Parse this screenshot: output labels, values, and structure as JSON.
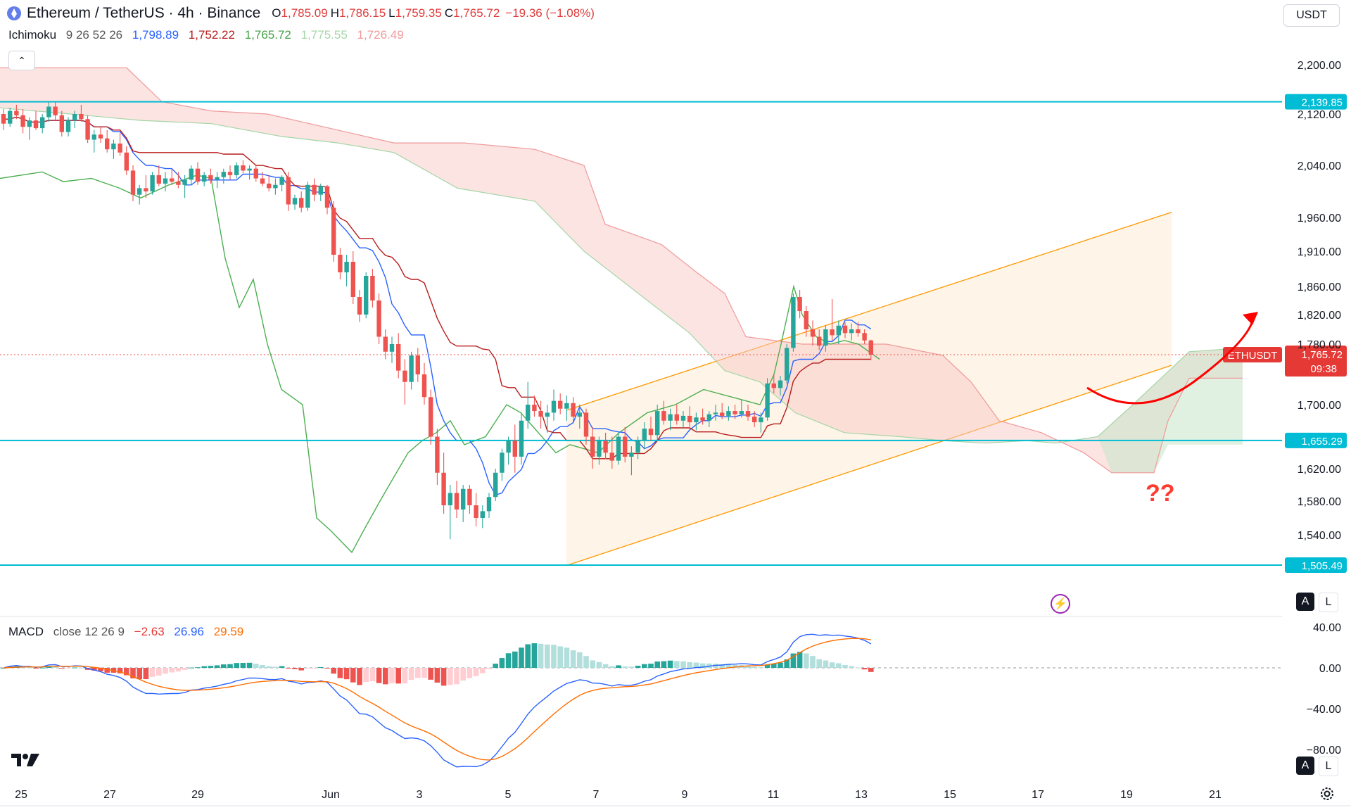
{
  "header": {
    "symbol": "Ethereum / TetherUS · 4h · Binance",
    "open_label": "O",
    "open": "1,785.09",
    "high_label": "H",
    "high": "1,786.15",
    "low_label": "L",
    "low": "1,759.35",
    "close_label": "C",
    "close": "1,765.72",
    "change": "−19.36 (−1.08%)"
  },
  "currency_select": "USDT",
  "ichimoku": {
    "label": "Ichimoku",
    "params": "9 26 52 26",
    "values": [
      "1,798.89",
      "1,752.22",
      "1,765.72",
      "1,775.55",
      "1,726.49"
    ],
    "colors": [
      "#2962ff",
      "#b71c1c",
      "#43a047",
      "#a5d6a7",
      "#ef9a9a"
    ]
  },
  "macd": {
    "label": "MACD",
    "params": "close 12 26 9",
    "values": [
      "−2.63",
      "26.96",
      "29.59"
    ],
    "colors": [
      "#e53935",
      "#2962ff",
      "#ff6d00"
    ]
  },
  "colors": {
    "up": "#26a69a",
    "down": "#ef5350",
    "level_line": "#00bcd4",
    "channel": "#ff9800",
    "arrow": "#ff0000",
    "question": "#ff3b30"
  },
  "icons": [
    "ethereum-logo-icon",
    "chevron-up-icon",
    "lightning-icon",
    "tradingview-logo-icon",
    "gear-icon"
  ],
  "chart_data": {
    "type": "candlestick",
    "symbol": "ETHUSDT",
    "timeframe": "4h",
    "y_axis_ticks": [
      "2,200.00",
      "2,120.00",
      "2,040.00",
      "1,960.00",
      "1,910.00",
      "1,860.00",
      "1,820.00",
      "1,780.00",
      "1,700.00",
      "1,620.00",
      "1,580.00",
      "1,540.00"
    ],
    "x_axis_ticks": [
      "25",
      "27",
      "29",
      "Jun",
      "3",
      "5",
      "7",
      "9",
      "11",
      "13",
      "15",
      "17",
      "19",
      "21"
    ],
    "price_tag": {
      "label": "ETHUSDT",
      "value": "1,765.72",
      "countdown": "09:38"
    },
    "horizontal_levels": [
      "2,139.85",
      "1,655.29",
      "1,505.49"
    ],
    "annotation": "??",
    "candles_approx": [
      [
        2120,
        2128,
        2095,
        2105
      ],
      [
        2105,
        2130,
        2100,
        2125
      ],
      [
        2125,
        2135,
        2112,
        2118
      ],
      [
        2118,
        2128,
        2090,
        2100
      ],
      [
        2100,
        2115,
        2080,
        2110
      ],
      [
        2110,
        2125,
        2095,
        2098
      ],
      [
        2098,
        2120,
        2090,
        2115
      ],
      [
        2115,
        2140,
        2108,
        2132
      ],
      [
        2132,
        2140,
        2110,
        2118
      ],
      [
        2118,
        2125,
        2085,
        2092
      ],
      [
        2092,
        2115,
        2085,
        2110
      ],
      [
        2110,
        2125,
        2098,
        2120
      ],
      [
        2120,
        2135,
        2108,
        2112
      ],
      [
        2112,
        2118,
        2075,
        2080
      ],
      [
        2080,
        2095,
        2060,
        2088
      ],
      [
        2088,
        2100,
        2075,
        2082
      ],
      [
        2082,
        2095,
        2060,
        2065
      ],
      [
        2065,
        2080,
        2050,
        2074
      ],
      [
        2074,
        2090,
        2055,
        2060
      ],
      [
        2060,
        2070,
        2025,
        2032
      ],
      [
        2032,
        2040,
        1985,
        1995
      ],
      [
        1995,
        2010,
        1980,
        2005
      ],
      [
        2005,
        2025,
        1990,
        2000
      ],
      [
        2000,
        2030,
        1995,
        2025
      ],
      [
        2025,
        2040,
        2008,
        2012
      ],
      [
        2012,
        2030,
        2000,
        2020
      ],
      [
        2020,
        2035,
        2010,
        2015
      ],
      [
        2015,
        2030,
        2005,
        2010
      ],
      [
        2010,
        2025,
        1990,
        2018
      ],
      [
        2018,
        2040,
        2010,
        2035
      ],
      [
        2035,
        2045,
        2010,
        2015
      ],
      [
        2015,
        2030,
        2008,
        2025
      ],
      [
        2025,
        2035,
        2012,
        2018
      ],
      [
        2018,
        2030,
        2005,
        2022
      ],
      [
        2022,
        2035,
        2012,
        2030
      ],
      [
        2030,
        2040,
        2018,
        2025
      ],
      [
        2025,
        2045,
        2020,
        2040
      ],
      [
        2040,
        2048,
        2028,
        2032
      ],
      [
        2032,
        2040,
        2018,
        2035
      ],
      [
        2035,
        2040,
        2015,
        2020
      ],
      [
        2020,
        2030,
        2008,
        2012
      ],
      [
        2012,
        2025,
        2000,
        2005
      ],
      [
        2005,
        2020,
        1995,
        2010
      ],
      [
        2010,
        2025,
        2000,
        2022
      ],
      [
        2022,
        2030,
        1970,
        1980
      ],
      [
        1980,
        1995,
        1972,
        1990
      ],
      [
        1990,
        2000,
        1968,
        1975
      ],
      [
        1975,
        2015,
        1970,
        2010
      ],
      [
        2010,
        2020,
        1985,
        1995
      ],
      [
        1995,
        2012,
        1985,
        2008
      ],
      [
        2008,
        2010,
        1965,
        1975
      ],
      [
        1975,
        1985,
        1895,
        1905
      ],
      [
        1905,
        1915,
        1870,
        1880
      ],
      [
        1880,
        1905,
        1860,
        1895
      ],
      [
        1895,
        1910,
        1835,
        1845
      ],
      [
        1845,
        1855,
        1810,
        1820
      ],
      [
        1820,
        1880,
        1815,
        1875
      ],
      [
        1875,
        1885,
        1830,
        1840
      ],
      [
        1840,
        1850,
        1780,
        1790
      ],
      [
        1790,
        1800,
        1760,
        1770
      ],
      [
        1770,
        1790,
        1755,
        1780
      ],
      [
        1780,
        1795,
        1735,
        1745
      ],
      [
        1745,
        1760,
        1700,
        1730
      ],
      [
        1730,
        1770,
        1720,
        1765
      ],
      [
        1765,
        1775,
        1730,
        1740
      ],
      [
        1740,
        1755,
        1700,
        1710
      ],
      [
        1710,
        1720,
        1650,
        1660
      ],
      [
        1660,
        1670,
        1600,
        1615
      ],
      [
        1615,
        1640,
        1565,
        1575
      ],
      [
        1575,
        1600,
        1535,
        1590
      ],
      [
        1590,
        1605,
        1560,
        1570
      ],
      [
        1570,
        1600,
        1555,
        1595
      ],
      [
        1595,
        1600,
        1565,
        1575
      ],
      [
        1575,
        1590,
        1550,
        1560
      ],
      [
        1560,
        1575,
        1548,
        1568
      ],
      [
        1568,
        1590,
        1560,
        1585
      ],
      [
        1585,
        1620,
        1580,
        1615
      ],
      [
        1615,
        1645,
        1605,
        1640
      ],
      [
        1640,
        1660,
        1625,
        1655
      ],
      [
        1655,
        1675,
        1615,
        1635
      ],
      [
        1635,
        1690,
        1625,
        1680
      ],
      [
        1680,
        1730,
        1670,
        1700
      ],
      [
        1700,
        1712,
        1685,
        1692
      ],
      [
        1692,
        1705,
        1670,
        1685
      ],
      [
        1685,
        1700,
        1665,
        1690
      ],
      [
        1690,
        1720,
        1680,
        1705
      ],
      [
        1705,
        1715,
        1688,
        1695
      ],
      [
        1695,
        1712,
        1680,
        1702
      ],
      [
        1702,
        1710,
        1678,
        1685
      ],
      [
        1685,
        1700,
        1670,
        1690
      ],
      [
        1690,
        1695,
        1650,
        1660
      ],
      [
        1660,
        1672,
        1620,
        1635
      ],
      [
        1635,
        1660,
        1625,
        1655
      ],
      [
        1655,
        1665,
        1632,
        1640
      ],
      [
        1640,
        1660,
        1620,
        1630
      ],
      [
        1630,
        1665,
        1625,
        1660
      ],
      [
        1660,
        1672,
        1628,
        1635
      ],
      [
        1635,
        1648,
        1612,
        1640
      ],
      [
        1640,
        1660,
        1632,
        1655
      ],
      [
        1655,
        1678,
        1645,
        1670
      ],
      [
        1670,
        1685,
        1655,
        1662
      ],
      [
        1662,
        1700,
        1655,
        1692
      ],
      [
        1692,
        1705,
        1675,
        1680
      ],
      [
        1680,
        1695,
        1668,
        1688
      ],
      [
        1688,
        1700,
        1675,
        1680
      ],
      [
        1680,
        1692,
        1670,
        1686
      ],
      [
        1686,
        1698,
        1672,
        1678
      ],
      [
        1678,
        1690,
        1668,
        1684
      ],
      [
        1684,
        1695,
        1675,
        1680
      ],
      [
        1680,
        1692,
        1672,
        1688
      ],
      [
        1688,
        1700,
        1680,
        1690
      ],
      [
        1690,
        1702,
        1682,
        1686
      ],
      [
        1686,
        1698,
        1680,
        1692
      ],
      [
        1692,
        1700,
        1682,
        1688
      ],
      [
        1688,
        1706,
        1684,
        1692
      ],
      [
        1692,
        1700,
        1680,
        1685
      ],
      [
        1685,
        1692,
        1672,
        1678
      ],
      [
        1678,
        1690,
        1665,
        1684
      ],
      [
        1684,
        1735,
        1680,
        1728
      ],
      [
        1728,
        1740,
        1715,
        1722
      ],
      [
        1722,
        1738,
        1712,
        1732
      ],
      [
        1732,
        1780,
        1728,
        1775
      ],
      [
        1775,
        1850,
        1770,
        1845
      ],
      [
        1845,
        1855,
        1815,
        1825
      ],
      [
        1825,
        1832,
        1790,
        1800
      ],
      [
        1800,
        1812,
        1778,
        1790
      ],
      [
        1790,
        1800,
        1772,
        1778
      ],
      [
        1778,
        1805,
        1770,
        1800
      ],
      [
        1800,
        1842,
        1785,
        1792
      ],
      [
        1792,
        1812,
        1780,
        1805
      ],
      [
        1805,
        1810,
        1788,
        1795
      ],
      [
        1795,
        1808,
        1785,
        1800
      ],
      [
        1800,
        1810,
        1790,
        1795
      ],
      [
        1795,
        1800,
        1780,
        1785
      ],
      [
        1785,
        1786,
        1759,
        1766
      ]
    ],
    "macd": {
      "axis_ticks": [
        "40.00",
        "0.00",
        "−40.00",
        "−80.00"
      ],
      "macd_last": -2.63,
      "signal_last": 29.59
    }
  }
}
